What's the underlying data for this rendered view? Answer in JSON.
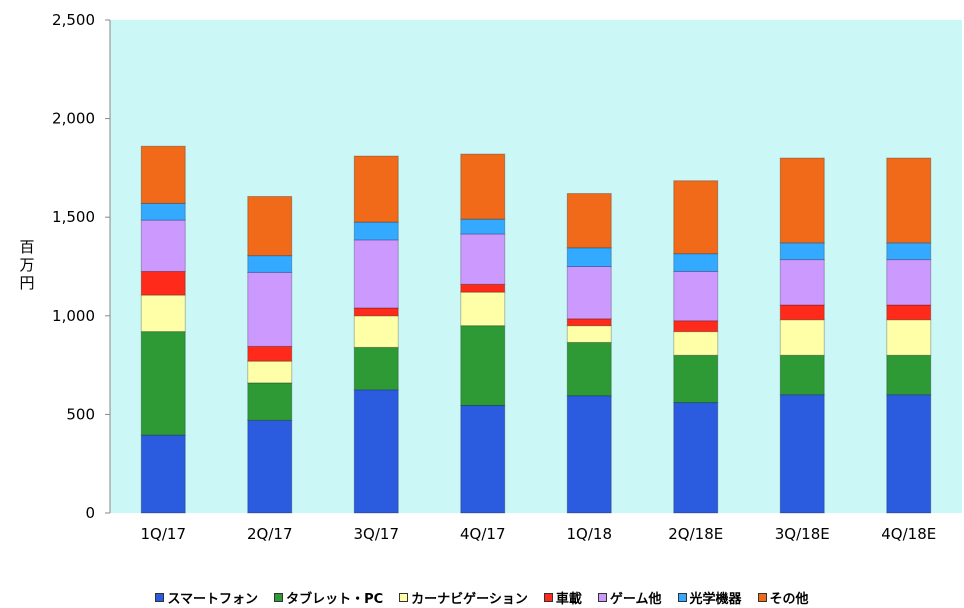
{
  "chart_data": {
    "type": "bar",
    "stacked": true,
    "categories": [
      "1Q/17",
      "2Q/17",
      "3Q/17",
      "4Q/17",
      "1Q/18",
      "2Q/18E",
      "3Q/18E",
      "4Q/18E"
    ],
    "ylabel": "百万円",
    "ylim": [
      0,
      2500
    ],
    "yticks": [
      0,
      500,
      1000,
      1500,
      2000,
      2500
    ],
    "ytick_labels": [
      "0",
      "500",
      "1,000",
      "1,500",
      "2,000",
      "2,500"
    ],
    "plot_background": "#ccf7f7",
    "grid": false,
    "legend_position": "bottom",
    "series": [
      {
        "name": "スマートフォン",
        "color": "#2b5ce0",
        "values": [
          395,
          470,
          625,
          545,
          595,
          560,
          600,
          600
        ]
      },
      {
        "name": "タブレット・PC",
        "color": "#2e9a36",
        "values": [
          525,
          190,
          215,
          405,
          270,
          240,
          200,
          200
        ]
      },
      {
        "name": "カーナビゲーション",
        "color": "#ffffa8",
        "values": [
          185,
          110,
          160,
          170,
          85,
          120,
          180,
          180
        ]
      },
      {
        "name": "車載",
        "color": "#ff2a1a",
        "values": [
          120,
          75,
          40,
          40,
          35,
          55,
          75,
          75
        ]
      },
      {
        "name": "ゲーム他",
        "color": "#cc99ff",
        "values": [
          260,
          375,
          345,
          255,
          265,
          250,
          230,
          230
        ]
      },
      {
        "name": "光学機器",
        "color": "#33aaff",
        "values": [
          85,
          85,
          90,
          75,
          95,
          90,
          85,
          85
        ]
      },
      {
        "name": "その他",
        "color": "#f06a1a",
        "values": [
          290,
          300,
          335,
          330,
          275,
          370,
          430,
          430
        ]
      }
    ]
  }
}
